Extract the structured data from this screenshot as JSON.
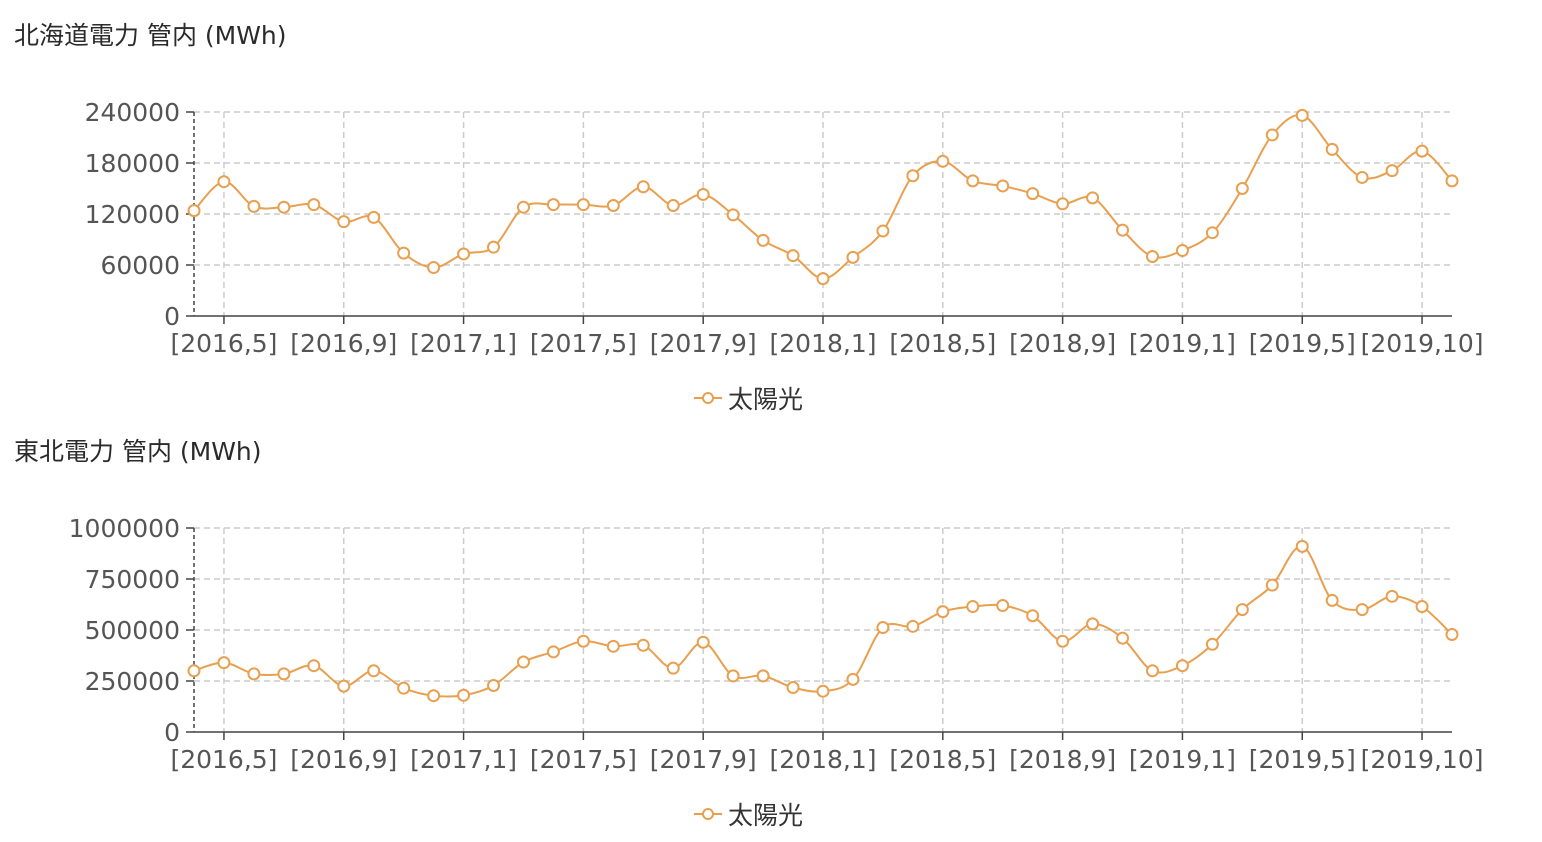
{
  "colors": {
    "series": "#e8a050",
    "grid": "#cccccc",
    "axis": "#444444"
  },
  "chart_data": [
    {
      "type": "line",
      "title": "北海道電力 管内 (MWh)",
      "xlabel": "",
      "ylabel": "",
      "ylim": [
        0,
        240000
      ],
      "yticks": [
        "0",
        "60000",
        "120000",
        "180000",
        "240000"
      ],
      "xticks": [
        "[2016,5]",
        "[2016,9]",
        "[2017,1]",
        "[2017,5]",
        "[2017,9]",
        "[2018,1]",
        "[2018,5]",
        "[2018,9]",
        "[2019,1]",
        "[2019,5]",
        "[2019,10]"
      ],
      "x": [
        "2016-04",
        "2016-05",
        "2016-06",
        "2016-07",
        "2016-08",
        "2016-09",
        "2016-10",
        "2016-11",
        "2016-12",
        "2017-01",
        "2017-02",
        "2017-03",
        "2017-04",
        "2017-05",
        "2017-06",
        "2017-07",
        "2017-08",
        "2017-09",
        "2017-10",
        "2017-11",
        "2017-12",
        "2018-01",
        "2018-02",
        "2018-03",
        "2018-04",
        "2018-05",
        "2018-06",
        "2018-07",
        "2018-08",
        "2018-09",
        "2018-10",
        "2018-11",
        "2018-12",
        "2019-01",
        "2019-02",
        "2019-03",
        "2019-04",
        "2019-05",
        "2019-06",
        "2019-07",
        "2019-08",
        "2019-09",
        "2019-10"
      ],
      "grid": true,
      "legend_position": "bottom-center",
      "series": [
        {
          "name": "太陽光",
          "values": [
            124000,
            158000,
            129000,
            128000,
            131000,
            111000,
            116000,
            74000,
            57000,
            73000,
            81000,
            128000,
            131000,
            131000,
            130000,
            152000,
            130000,
            143000,
            119000,
            89000,
            71000,
            44000,
            69000,
            100000,
            165000,
            182000,
            159000,
            153000,
            144000,
            132000,
            139000,
            101000,
            70000,
            77000,
            98000,
            150000,
            213000,
            236000,
            196000,
            163000,
            171000,
            194000,
            159000
          ]
        }
      ]
    },
    {
      "type": "line",
      "title": "東北電力 管内 (MWh)",
      "xlabel": "",
      "ylabel": "",
      "ylim": [
        0,
        1000000
      ],
      "yticks": [
        "0",
        "250000",
        "500000",
        "750000",
        "1000000"
      ],
      "xticks": [
        "[2016,5]",
        "[2016,9]",
        "[2017,1]",
        "[2017,5]",
        "[2017,9]",
        "[2018,1]",
        "[2018,5]",
        "[2018,9]",
        "[2019,1]",
        "[2019,5]",
        "[2019,10]"
      ],
      "x": [
        "2016-04",
        "2016-05",
        "2016-06",
        "2016-07",
        "2016-08",
        "2016-09",
        "2016-10",
        "2016-11",
        "2016-12",
        "2017-01",
        "2017-02",
        "2017-03",
        "2017-04",
        "2017-05",
        "2017-06",
        "2017-07",
        "2017-08",
        "2017-09",
        "2017-10",
        "2017-11",
        "2017-12",
        "2018-01",
        "2018-02",
        "2018-03",
        "2018-04",
        "2018-05",
        "2018-06",
        "2018-07",
        "2018-08",
        "2018-09",
        "2018-10",
        "2018-11",
        "2018-12",
        "2019-01",
        "2019-02",
        "2019-03",
        "2019-04",
        "2019-05",
        "2019-06",
        "2019-07",
        "2019-08",
        "2019-09",
        "2019-10"
      ],
      "grid": true,
      "legend_position": "bottom-center",
      "series": [
        {
          "name": "太陽光",
          "values": [
            300000,
            340000,
            285000,
            285000,
            325000,
            225000,
            300000,
            215000,
            178000,
            180000,
            228000,
            343000,
            393000,
            445000,
            420000,
            425000,
            313000,
            440000,
            275000,
            275000,
            218000,
            200000,
            258000,
            512000,
            518000,
            590000,
            615000,
            620000,
            570000,
            445000,
            530000,
            460000,
            300000,
            325000,
            430000,
            600000,
            720000,
            910000,
            645000,
            600000,
            665000,
            615000,
            478000
          ]
        }
      ]
    }
  ]
}
